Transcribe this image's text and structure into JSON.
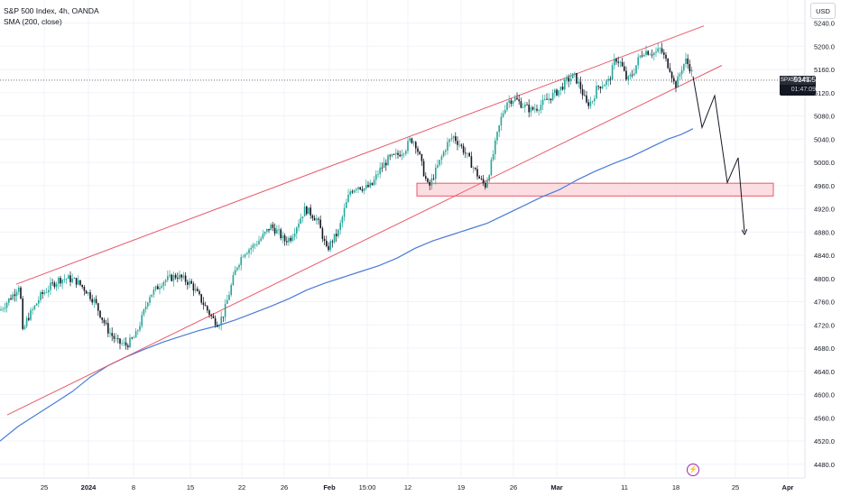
{
  "header": {
    "title": "S&P 500 Index, 4h, OANDA",
    "indicator": "SMA (200, close)"
  },
  "currency": "USD",
  "price_tag": {
    "symbol": "SPX500USD",
    "price": "5141.5",
    "countdown": "01:47:09"
  },
  "colors": {
    "up_candle": "#26a69a",
    "down_candle": "#131722",
    "sma": "#4a7bd8",
    "channel": "#e85a6a",
    "zone_fill": "#fbd3d8",
    "zone_border": "#e85a6a",
    "projection": "#131722",
    "grid": "#f0f3fa"
  },
  "icons": {
    "event": "lightning-icon"
  },
  "chart_data": {
    "type": "candlestick",
    "y_ticks": [
      "5240.0",
      "5200.0",
      "5160.0",
      "5120.0",
      "5080.0",
      "5040.0",
      "5000.0",
      "4960.0",
      "4920.0",
      "4880.0",
      "4840.0",
      "4800.0",
      "4760.0",
      "4720.0",
      "4680.0",
      "4640.0",
      "4600.0",
      "4560.0",
      "4520.0",
      "4480.0"
    ],
    "x_ticks": [
      "25",
      "2024",
      "8",
      "15",
      "22",
      "26",
      "Feb",
      "15:00",
      "12",
      "19",
      "26",
      "Mar",
      "11",
      "18",
      "25",
      "Apr"
    ],
    "price_path": [
      [
        0,
        4745
      ],
      [
        8,
        4760
      ],
      [
        16,
        4775
      ],
      [
        22,
        4792
      ],
      [
        25,
        4705
      ],
      [
        30,
        4730
      ],
      [
        38,
        4750
      ],
      [
        45,
        4770
      ],
      [
        55,
        4785
      ],
      [
        65,
        4798
      ],
      [
        75,
        4800
      ],
      [
        85,
        4795
      ],
      [
        95,
        4780
      ],
      [
        105,
        4760
      ],
      [
        112,
        4735
      ],
      [
        120,
        4710
      ],
      [
        130,
        4690
      ],
      [
        140,
        4685
      ],
      [
        150,
        4700
      ],
      [
        158,
        4735
      ],
      [
        165,
        4770
      ],
      [
        172,
        4780
      ],
      [
        180,
        4795
      ],
      [
        188,
        4800
      ],
      [
        196,
        4805
      ],
      [
        204,
        4798
      ],
      [
        212,
        4790
      ],
      [
        220,
        4770
      ],
      [
        228,
        4750
      ],
      [
        236,
        4730
      ],
      [
        242,
        4722
      ],
      [
        248,
        4740
      ],
      [
        255,
        4780
      ],
      [
        262,
        4820
      ],
      [
        270,
        4845
      ],
      [
        280,
        4855
      ],
      [
        290,
        4870
      ],
      [
        300,
        4890
      ],
      [
        308,
        4880
      ],
      [
        315,
        4865
      ],
      [
        322,
        4870
      ],
      [
        330,
        4895
      ],
      [
        338,
        4920
      ],
      [
        346,
        4910
      ],
      [
        352,
        4900
      ],
      [
        358,
        4870
      ],
      [
        362,
        4848
      ],
      [
        368,
        4865
      ],
      [
        375,
        4880
      ],
      [
        382,
        4920
      ],
      [
        388,
        4950
      ],
      [
        396,
        4960
      ],
      [
        404,
        4955
      ],
      [
        412,
        4960
      ],
      [
        420,
        4985
      ],
      [
        430,
        5005
      ],
      [
        440,
        5012
      ],
      [
        450,
        5025
      ],
      [
        455,
        5040
      ],
      [
        460,
        5035
      ],
      [
        465,
        5010
      ],
      [
        470,
        4980
      ],
      [
        475,
        4955
      ],
      [
        480,
        4975
      ],
      [
        487,
        5000
      ],
      [
        495,
        5030
      ],
      [
        502,
        5045
      ],
      [
        510,
        5030
      ],
      [
        518,
        5010
      ],
      [
        525,
        4990
      ],
      [
        532,
        4970
      ],
      [
        538,
        4960
      ],
      [
        544,
        4995
      ],
      [
        550,
        5040
      ],
      [
        556,
        5080
      ],
      [
        562,
        5105
      ],
      [
        570,
        5110
      ],
      [
        578,
        5100
      ],
      [
        588,
        5090
      ],
      [
        596,
        5095
      ],
      [
        604,
        5105
      ],
      [
        612,
        5115
      ],
      [
        620,
        5125
      ],
      [
        628,
        5140
      ],
      [
        636,
        5150
      ],
      [
        643,
        5130
      ],
      [
        650,
        5100
      ],
      [
        656,
        5105
      ],
      [
        662,
        5130
      ],
      [
        668,
        5135
      ],
      [
        675,
        5140
      ],
      [
        682,
        5180
      ],
      [
        688,
        5170
      ],
      [
        695,
        5140
      ],
      [
        702,
        5155
      ],
      [
        708,
        5180
      ],
      [
        714,
        5192
      ],
      [
        720,
        5190
      ],
      [
        726,
        5188
      ],
      [
        732,
        5195
      ],
      [
        738,
        5175
      ],
      [
        743,
        5160
      ],
      [
        748,
        5130
      ],
      [
        752,
        5145
      ],
      [
        756,
        5165
      ],
      [
        760,
        5175
      ],
      [
        764,
        5165
      ],
      [
        768,
        5150
      ]
    ],
    "sma_path": [
      [
        0,
        4520
      ],
      [
        20,
        4545
      ],
      [
        40,
        4565
      ],
      [
        60,
        4585
      ],
      [
        80,
        4605
      ],
      [
        100,
        4630
      ],
      [
        120,
        4650
      ],
      [
        140,
        4665
      ],
      [
        160,
        4678
      ],
      [
        180,
        4690
      ],
      [
        200,
        4700
      ],
      [
        220,
        4710
      ],
      [
        240,
        4718
      ],
      [
        260,
        4728
      ],
      [
        280,
        4740
      ],
      [
        300,
        4752
      ],
      [
        320,
        4765
      ],
      [
        340,
        4780
      ],
      [
        360,
        4792
      ],
      [
        380,
        4802
      ],
      [
        400,
        4812
      ],
      [
        420,
        4822
      ],
      [
        440,
        4835
      ],
      [
        460,
        4852
      ],
      [
        480,
        4865
      ],
      [
        500,
        4875
      ],
      [
        520,
        4885
      ],
      [
        540,
        4895
      ],
      [
        560,
        4910
      ],
      [
        580,
        4925
      ],
      [
        600,
        4940
      ],
      [
        620,
        4953
      ],
      [
        640,
        4970
      ],
      [
        660,
        4985
      ],
      [
        680,
        4998
      ],
      [
        700,
        5010
      ],
      [
        720,
        5025
      ],
      [
        740,
        5040
      ],
      [
        755,
        5048
      ],
      [
        768,
        5058
      ]
    ],
    "channel_upper": [
      [
        18,
        4790
      ],
      [
        780,
        5235
      ]
    ],
    "channel_lower": [
      [
        8,
        4565
      ],
      [
        800,
        5167
      ]
    ],
    "support_zone": {
      "x_start": 462,
      "x_end": 857,
      "y_top": 4964,
      "y_bottom": 4942
    },
    "projection": [
      [
        768,
        5148
      ],
      [
        778,
        5060
      ],
      [
        792,
        5115
      ],
      [
        806,
        4965
      ],
      [
        818,
        5008
      ],
      [
        825,
        4880
      ]
    ],
    "last_price": 5141.5
  }
}
